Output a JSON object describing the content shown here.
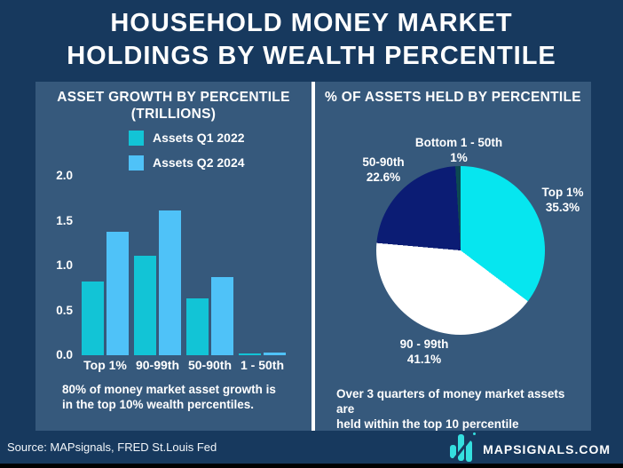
{
  "title": {
    "line1": "HOUSEHOLD MONEY MARKET",
    "line2": "HOLDINGS BY WEALTH PERCENTILE"
  },
  "colors": {
    "background": "#17395e",
    "panel": "#36597c",
    "divider": "#ffffff",
    "text": "#ffffff",
    "bottom_bar": "#000000",
    "logo_cyan": "#35dfdf"
  },
  "chart_data": [
    {
      "type": "bar",
      "title": "ASSET GROWTH BY PERCENTILE (TRILLIONS)",
      "title_line1": "ASSET GROWTH BY PERCENTILE",
      "title_line2": "(TRILLIONS)",
      "categories": [
        "Top 1%",
        "90-99th",
        "50-90th",
        "1 - 50th"
      ],
      "series": [
        {
          "name": "Assets Q1 2022",
          "color": "#12c4d6",
          "values": [
            0.82,
            1.11,
            0.63,
            0.02
          ]
        },
        {
          "name": "Assets Q2 2024",
          "color": "#4fc2f8",
          "values": [
            1.38,
            1.61,
            0.87,
            0.03
          ]
        }
      ],
      "ylabel": "",
      "xlabel": "",
      "ylim": [
        0,
        2.0
      ],
      "yticks": [
        "2.0",
        "1.5",
        "1.0",
        "0.5",
        "0.0"
      ],
      "grid": false,
      "legend_position": "top"
    },
    {
      "type": "pie",
      "title": "% OF ASSETS HELD BY PERCENTILE",
      "start_angle_deg": 0,
      "direction": "clockwise",
      "slices": [
        {
          "label": "Top 1%",
          "value": 35.3,
          "value_label": "35.3%",
          "color": "#06e6ef"
        },
        {
          "label": "90 - 99th",
          "value": 41.1,
          "value_label": "41.1%",
          "color": "#ffffff"
        },
        {
          "label": "50-90th",
          "value": 22.6,
          "value_label": "22.6%",
          "color": "#0b1c74"
        },
        {
          "label": "Bottom 1 - 50th",
          "value": 1,
          "value_label": "1%",
          "color": "#0c4a52"
        }
      ]
    }
  ],
  "left_panel": {
    "footer_line1": "80% of money market asset growth is",
    "footer_line2": "in the top 10% wealth percentiles."
  },
  "right_panel": {
    "footer_line1": "Over 3 quarters of money market assets are",
    "footer_line2": "held within the top 10 percentile"
  },
  "footer": {
    "source": "Source: MAPsignals, FRED St.Louis Fed",
    "brand": "MAPSIGNALS.COM"
  }
}
